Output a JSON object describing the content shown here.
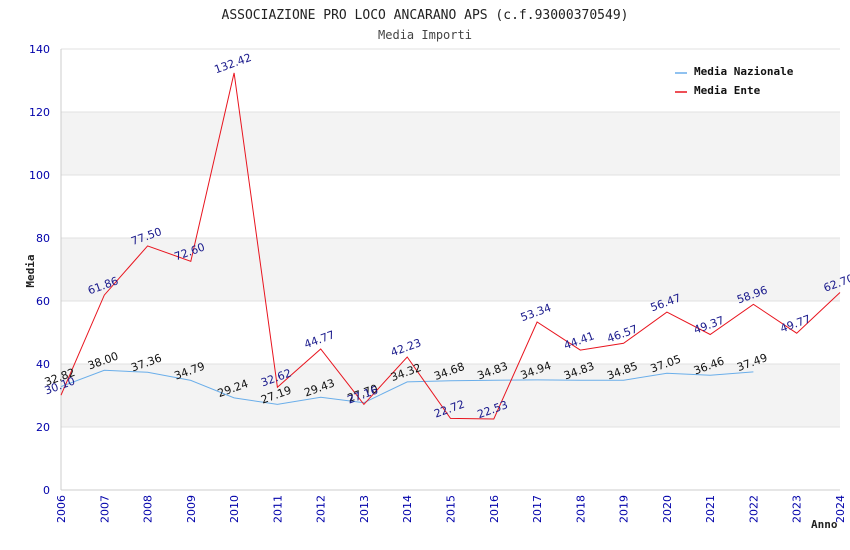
{
  "chart_data": {
    "type": "line",
    "title": "ASSOCIAZIONE PRO LOCO ANCARANO APS (c.f.93000370549)",
    "subtitle": "Media Importi",
    "xlabel": "Anno",
    "ylabel": "Media",
    "ylim": [
      0,
      140
    ],
    "yticks": [
      0,
      20,
      40,
      60,
      80,
      100,
      120,
      140
    ],
    "categories": [
      "2006",
      "2007",
      "2008",
      "2009",
      "2010",
      "2011",
      "2012",
      "2013",
      "2014",
      "2015",
      "2016",
      "2017",
      "2018",
      "2019",
      "2020",
      "2021",
      "2022",
      "2023",
      "2024"
    ],
    "legend_position": "top-right",
    "series": [
      {
        "name": "Media Nazionale",
        "color": "#6aaeea",
        "values": [
          32.82,
          38.0,
          37.36,
          34.79,
          29.24,
          27.19,
          29.43,
          27.7,
          34.32,
          34.68,
          34.83,
          34.94,
          34.83,
          34.85,
          37.05,
          36.46,
          37.49,
          null,
          null
        ],
        "labels": [
          "32.82",
          "38.00",
          "37.36",
          "34.79",
          "29.24",
          "27.19",
          "29.43",
          "27.70",
          "34.32",
          "34.68",
          "34.83",
          "34.94",
          "34.83",
          "34.85",
          "37.05",
          "36.46",
          "37.49",
          null,
          null
        ]
      },
      {
        "name": "Media Ente",
        "color": "#e8141e",
        "values": [
          30.1,
          61.86,
          77.5,
          72.6,
          132.42,
          32.62,
          44.77,
          27.16,
          42.23,
          22.72,
          22.53,
          53.34,
          44.41,
          46.57,
          56.47,
          49.37,
          58.96,
          49.77,
          62.7
        ],
        "labels": [
          "30.10",
          "61.86",
          "77.50",
          "72.60",
          "132.42",
          "32.62",
          "44.77",
          "27.16",
          "42.23",
          "22.72",
          "22.53",
          "53.34",
          "44.41",
          "46.57",
          "56.47",
          "49.37",
          "58.96",
          "49.77",
          "62.70"
        ]
      }
    ]
  }
}
